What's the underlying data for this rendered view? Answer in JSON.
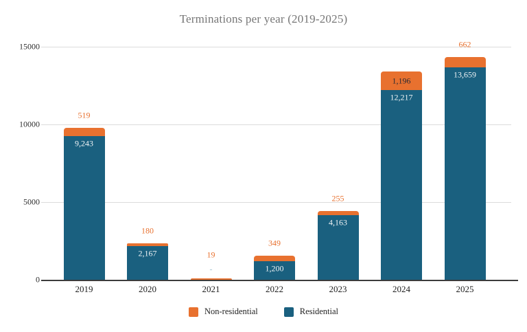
{
  "chart_data": {
    "type": "bar",
    "stacked": true,
    "title": "Terminations per year (2019-2025)",
    "categories": [
      "2019",
      "2020",
      "2021",
      "2022",
      "2023",
      "2024",
      "2025"
    ],
    "series": [
      {
        "name": "Residential",
        "color": "#1A607F",
        "values": [
          9243,
          2167,
          null,
          1200,
          4163,
          12217,
          13659
        ],
        "labels": [
          "9,243",
          "2,167",
          "-",
          "1,200",
          "4,163",
          "12,217",
          "13,659"
        ]
      },
      {
        "name": "Non-residential",
        "color": "#E8712F",
        "values": [
          519,
          180,
          19,
          349,
          255,
          1196,
          662
        ],
        "labels": [
          "519",
          "180",
          "19",
          "349",
          "255",
          "1,196",
          "662"
        ]
      }
    ],
    "y_ticks": [
      {
        "value": 0,
        "label": "0"
      },
      {
        "value": 5000,
        "label": "5000"
      },
      {
        "value": 10000,
        "label": "10000"
      },
      {
        "value": 15000,
        "label": "15000"
      }
    ],
    "ylim": [
      0,
      15000
    ],
    "grid": true,
    "legend_position": "bottom",
    "legend": [
      {
        "label": "Non-residential",
        "color": "#E8712F"
      },
      {
        "label": "Residential",
        "color": "#1A607F"
      }
    ]
  },
  "colors": {
    "residential": "#1A607F",
    "non_residential": "#E8712F",
    "title_text": "#767676",
    "grid_line": "#DCDCDC",
    "axis_line": "#3C3C3C",
    "label_on_teal": "#EFF3F5",
    "label_on_orange": "#2A2A33",
    "label_above_bar": "#E8712F",
    "null_dash_label": "#9FC2D2",
    "tick_text": "#2C2C2C"
  }
}
